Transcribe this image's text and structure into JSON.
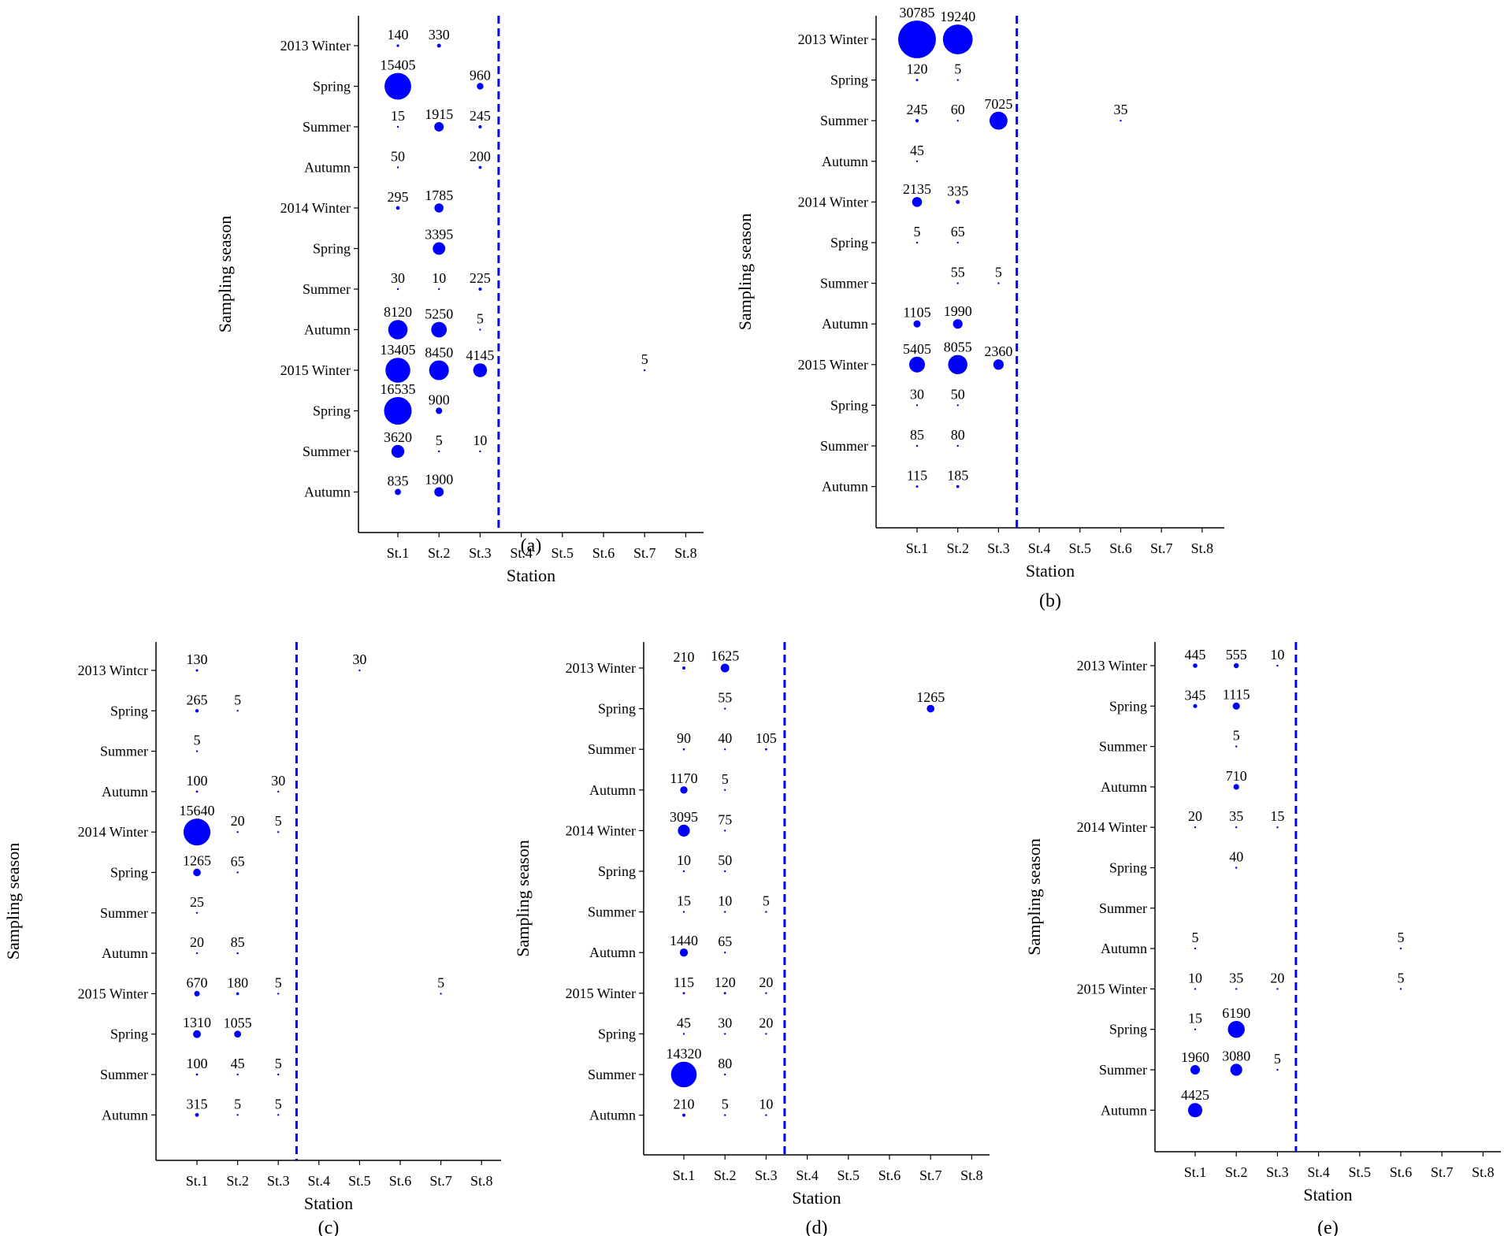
{
  "style": {
    "bubble_color": "#0000ff",
    "divider_color": "#0000ff",
    "axis_color": "#000000"
  },
  "y_categories": [
    "2013 Winter",
    "Spring",
    "Summer",
    "Autumn",
    "2014 Winter",
    "Spring",
    "Summer",
    "Autumn",
    "2015 Winter",
    "Spring",
    "Summer",
    "Autumn"
  ],
  "x_categories": [
    "St.1",
    "St.2",
    "St.3",
    "St.4",
    "St.5",
    "St.6",
    "St.7",
    "St.8"
  ],
  "chart_data": [
    {
      "type": "scatter",
      "panel_label": "(a)",
      "xlabel": "Station",
      "ylabel": "Sampling season",
      "y_categories": [
        "2013 Winter",
        "Spring",
        "Summer",
        "Autumn",
        "2014 Winter",
        "Spring",
        "Summer",
        "Autumn",
        "2015 Winter",
        "Spring",
        "Summer",
        "Autumn"
      ],
      "x_categories": [
        "St.1",
        "St.2",
        "St.3",
        "St.4",
        "St.5",
        "St.6",
        "St.7",
        "St.8"
      ],
      "divider_after_station": "St.3",
      "points": [
        {
          "s": 0,
          "q": 0,
          "v": 140
        },
        {
          "s": 1,
          "q": 0,
          "v": 330
        },
        {
          "s": 0,
          "q": 1,
          "v": 15405
        },
        {
          "s": 2,
          "q": 1,
          "v": 960
        },
        {
          "s": 0,
          "q": 2,
          "v": 15
        },
        {
          "s": 1,
          "q": 2,
          "v": 1915
        },
        {
          "s": 2,
          "q": 2,
          "v": 245
        },
        {
          "s": 0,
          "q": 3,
          "v": 50
        },
        {
          "s": 2,
          "q": 3,
          "v": 200
        },
        {
          "s": 0,
          "q": 4,
          "v": 295
        },
        {
          "s": 1,
          "q": 4,
          "v": 1785
        },
        {
          "s": 1,
          "q": 5,
          "v": 3395
        },
        {
          "s": 0,
          "q": 6,
          "v": 30
        },
        {
          "s": 1,
          "q": 6,
          "v": 10
        },
        {
          "s": 2,
          "q": 6,
          "v": 225
        },
        {
          "s": 0,
          "q": 7,
          "v": 8120
        },
        {
          "s": 1,
          "q": 7,
          "v": 5250
        },
        {
          "s": 2,
          "q": 7,
          "v": 5
        },
        {
          "s": 0,
          "q": 8,
          "v": 13405
        },
        {
          "s": 1,
          "q": 8,
          "v": 8450
        },
        {
          "s": 2,
          "q": 8,
          "v": 4145
        },
        {
          "s": 6,
          "q": 8,
          "v": 5
        },
        {
          "s": 0,
          "q": 9,
          "v": 16535
        },
        {
          "s": 1,
          "q": 9,
          "v": 900
        },
        {
          "s": 0,
          "q": 10,
          "v": 3620
        },
        {
          "s": 1,
          "q": 10,
          "v": 5
        },
        {
          "s": 2,
          "q": 10,
          "v": 10
        },
        {
          "s": 0,
          "q": 11,
          "v": 835
        },
        {
          "s": 1,
          "q": 11,
          "v": 1900
        }
      ]
    },
    {
      "type": "scatter",
      "panel_label": "(b)",
      "xlabel": "Station",
      "ylabel": "Sampling season",
      "y_categories": [
        "2013 Winter",
        "Spring",
        "Summer",
        "Autumn",
        "2014 Winter",
        "Spring",
        "Summer",
        "Autumn",
        "2015 Winter",
        "Spring",
        "Summer",
        "Autumn"
      ],
      "x_categories": [
        "St.1",
        "St.2",
        "St.3",
        "St.4",
        "St.5",
        "St.6",
        "St.7",
        "St.8"
      ],
      "divider_after_station": "St.3",
      "points": [
        {
          "s": 0,
          "q": 0,
          "v": 30785
        },
        {
          "s": 1,
          "q": 0,
          "v": 19240
        },
        {
          "s": 0,
          "q": 1,
          "v": 120
        },
        {
          "s": 1,
          "q": 1,
          "v": 5
        },
        {
          "s": 0,
          "q": 2,
          "v": 245
        },
        {
          "s": 1,
          "q": 2,
          "v": 60
        },
        {
          "s": 2,
          "q": 2,
          "v": 7025
        },
        {
          "s": 5,
          "q": 2,
          "v": 35
        },
        {
          "s": 0,
          "q": 3,
          "v": 45
        },
        {
          "s": 0,
          "q": 4,
          "v": 2135
        },
        {
          "s": 1,
          "q": 4,
          "v": 335
        },
        {
          "s": 0,
          "q": 5,
          "v": 5
        },
        {
          "s": 1,
          "q": 5,
          "v": 65
        },
        {
          "s": 1,
          "q": 6,
          "v": 55
        },
        {
          "s": 2,
          "q": 6,
          "v": 5
        },
        {
          "s": 0,
          "q": 7,
          "v": 1105
        },
        {
          "s": 1,
          "q": 7,
          "v": 1990
        },
        {
          "s": 0,
          "q": 8,
          "v": 5405
        },
        {
          "s": 1,
          "q": 8,
          "v": 8055
        },
        {
          "s": 2,
          "q": 8,
          "v": 2360
        },
        {
          "s": 0,
          "q": 9,
          "v": 30
        },
        {
          "s": 1,
          "q": 9,
          "v": 50
        },
        {
          "s": 0,
          "q": 10,
          "v": 85
        },
        {
          "s": 1,
          "q": 10,
          "v": 80
        },
        {
          "s": 0,
          "q": 11,
          "v": 115
        },
        {
          "s": 1,
          "q": 11,
          "v": 185
        }
      ]
    },
    {
      "type": "scatter",
      "panel_label": "(c)",
      "xlabel": "Station",
      "ylabel": "Sampling season",
      "y_categories": [
        "2013 Wintcr",
        "Spring",
        "Summer",
        "Autumn",
        "2014 Winter",
        "Spring",
        "Summer",
        "Autumn",
        "2015 Winter",
        "Spring",
        "Summer",
        "Autumn"
      ],
      "x_categories": [
        "St.1",
        "St.2",
        "St.3",
        "St.4",
        "St.5",
        "St.6",
        "St.7",
        "St.8"
      ],
      "divider_after_station": "St.3",
      "points": [
        {
          "s": 0,
          "q": 0,
          "v": 130
        },
        {
          "s": 4,
          "q": 0,
          "v": 30
        },
        {
          "s": 0,
          "q": 1,
          "v": 265
        },
        {
          "s": 1,
          "q": 1,
          "v": 5
        },
        {
          "s": 0,
          "q": 2,
          "v": 5
        },
        {
          "s": 0,
          "q": 3,
          "v": 100
        },
        {
          "s": 2,
          "q": 3,
          "v": 30
        },
        {
          "s": 0,
          "q": 4,
          "v": 15640
        },
        {
          "s": 1,
          "q": 4,
          "v": 20
        },
        {
          "s": 2,
          "q": 4,
          "v": 5
        },
        {
          "s": 0,
          "q": 5,
          "v": 1265
        },
        {
          "s": 1,
          "q": 5,
          "v": 65
        },
        {
          "s": 0,
          "q": 6,
          "v": 25
        },
        {
          "s": 0,
          "q": 7,
          "v": 20
        },
        {
          "s": 1,
          "q": 7,
          "v": 85
        },
        {
          "s": 0,
          "q": 8,
          "v": 670
        },
        {
          "s": 1,
          "q": 8,
          "v": 180
        },
        {
          "s": 2,
          "q": 8,
          "v": 5
        },
        {
          "s": 6,
          "q": 8,
          "v": 5
        },
        {
          "s": 0,
          "q": 9,
          "v": 1310
        },
        {
          "s": 1,
          "q": 9,
          "v": 1055
        },
        {
          "s": 0,
          "q": 10,
          "v": 100
        },
        {
          "s": 1,
          "q": 10,
          "v": 45
        },
        {
          "s": 2,
          "q": 10,
          "v": 5
        },
        {
          "s": 0,
          "q": 11,
          "v": 315
        },
        {
          "s": 1,
          "q": 11,
          "v": 5
        },
        {
          "s": 2,
          "q": 11,
          "v": 5
        }
      ]
    },
    {
      "type": "scatter",
      "panel_label": "(d)",
      "xlabel": "Station",
      "ylabel": "Sampling season",
      "y_categories": [
        "2013 Winter",
        "Spring",
        "Summer",
        "Autumn",
        "2014 Winter",
        "Spring",
        "Summer",
        "Autumn",
        "2015 Winter",
        "Spring",
        "Summer",
        "Autumn"
      ],
      "x_categories": [
        "St.1",
        "St.2",
        "St.3",
        "St.4",
        "St.5",
        "St.6",
        "St.7",
        "St.8"
      ],
      "divider_after_station": "St.3",
      "points": [
        {
          "s": 0,
          "q": 0,
          "v": 210
        },
        {
          "s": 1,
          "q": 0,
          "v": 1625
        },
        {
          "s": 1,
          "q": 1,
          "v": 55
        },
        {
          "s": 6,
          "q": 1,
          "v": 1265
        },
        {
          "s": 0,
          "q": 2,
          "v": 90
        },
        {
          "s": 1,
          "q": 2,
          "v": 40
        },
        {
          "s": 2,
          "q": 2,
          "v": 105
        },
        {
          "s": 0,
          "q": 3,
          "v": 1170
        },
        {
          "s": 1,
          "q": 3,
          "v": 5
        },
        {
          "s": 0,
          "q": 4,
          "v": 3095
        },
        {
          "s": 1,
          "q": 4,
          "v": 75
        },
        {
          "s": 0,
          "q": 5,
          "v": 10
        },
        {
          "s": 1,
          "q": 5,
          "v": 50
        },
        {
          "s": 0,
          "q": 6,
          "v": 15
        },
        {
          "s": 1,
          "q": 6,
          "v": 10
        },
        {
          "s": 2,
          "q": 6,
          "v": 5
        },
        {
          "s": 0,
          "q": 7,
          "v": 1440
        },
        {
          "s": 1,
          "q": 7,
          "v": 65
        },
        {
          "s": 0,
          "q": 8,
          "v": 115
        },
        {
          "s": 1,
          "q": 8,
          "v": 120
        },
        {
          "s": 2,
          "q": 8,
          "v": 20
        },
        {
          "s": 0,
          "q": 9,
          "v": 45
        },
        {
          "s": 1,
          "q": 9,
          "v": 30
        },
        {
          "s": 2,
          "q": 9,
          "v": 20
        },
        {
          "s": 0,
          "q": 10,
          "v": 14320
        },
        {
          "s": 1,
          "q": 10,
          "v": 80
        },
        {
          "s": 0,
          "q": 11,
          "v": 210
        },
        {
          "s": 1,
          "q": 11,
          "v": 5
        },
        {
          "s": 2,
          "q": 11,
          "v": 10
        }
      ]
    },
    {
      "type": "scatter",
      "panel_label": "(e)",
      "xlabel": "Station",
      "ylabel": "Sampling season",
      "y_categories": [
        "2013 Winter",
        "Spring",
        "Summer",
        "Autumn",
        "2014 Winter",
        "Spring",
        "Summer",
        "Autumn",
        "2015 Winter",
        "Spring",
        "Summer",
        "Autumn"
      ],
      "x_categories": [
        "St.1",
        "St.2",
        "St.3",
        "St.4",
        "St.5",
        "St.6",
        "St.7",
        "St.8"
      ],
      "divider_after_station": "St.3",
      "points": [
        {
          "s": 0,
          "q": 0,
          "v": 445
        },
        {
          "s": 1,
          "q": 0,
          "v": 555
        },
        {
          "s": 2,
          "q": 0,
          "v": 10
        },
        {
          "s": 0,
          "q": 1,
          "v": 345
        },
        {
          "s": 1,
          "q": 1,
          "v": 1115
        },
        {
          "s": 1,
          "q": 2,
          "v": 5
        },
        {
          "s": 1,
          "q": 3,
          "v": 710
        },
        {
          "s": 0,
          "q": 4,
          "v": 20
        },
        {
          "s": 1,
          "q": 4,
          "v": 35
        },
        {
          "s": 2,
          "q": 4,
          "v": 15
        },
        {
          "s": 1,
          "q": 5,
          "v": 40
        },
        {
          "s": 0,
          "q": 7,
          "v": 5
        },
        {
          "s": 5,
          "q": 7,
          "v": 5
        },
        {
          "s": 0,
          "q": 8,
          "v": 10
        },
        {
          "s": 1,
          "q": 8,
          "v": 35
        },
        {
          "s": 2,
          "q": 8,
          "v": 20
        },
        {
          "s": 5,
          "q": 8,
          "v": 5
        },
        {
          "s": 0,
          "q": 9,
          "v": 15
        },
        {
          "s": 1,
          "q": 9,
          "v": 6190
        },
        {
          "s": 0,
          "q": 10,
          "v": 1960
        },
        {
          "s": 1,
          "q": 10,
          "v": 3080
        },
        {
          "s": 2,
          "q": 10,
          "v": 5
        },
        {
          "s": 0,
          "q": 11,
          "v": 4425
        }
      ]
    }
  ]
}
